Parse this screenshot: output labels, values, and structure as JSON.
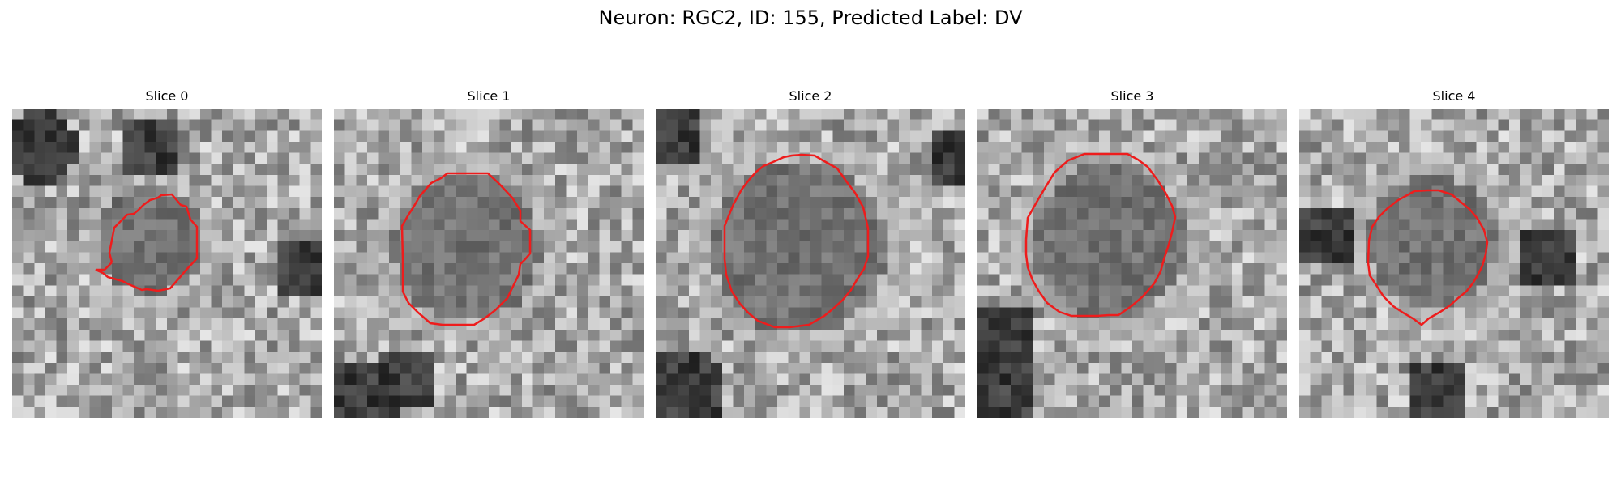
{
  "figure": {
    "title": "Neuron: RGC2, ID: 155, Predicted Label: DV"
  },
  "panels": [
    {
      "title": "Slice 0"
    },
    {
      "title": "Slice 1"
    },
    {
      "title": "Slice 2"
    },
    {
      "title": "Slice 3"
    },
    {
      "title": "Slice 4"
    }
  ],
  "colors": {
    "contour": "#ee1c1c",
    "background": "#ffffff"
  },
  "image": {
    "colormap": "grayscale",
    "pixel_grid": "28x28"
  }
}
